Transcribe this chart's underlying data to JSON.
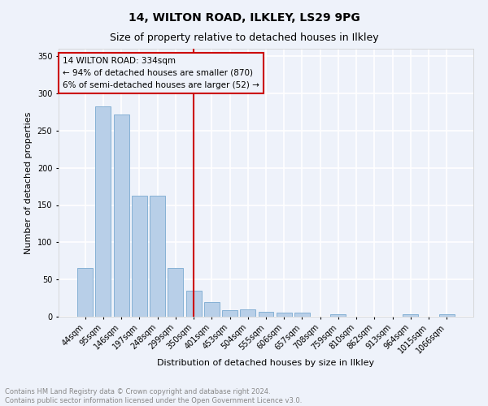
{
  "title": "14, WILTON ROAD, ILKLEY, LS29 9PG",
  "subtitle": "Size of property relative to detached houses in Ilkley",
  "xlabel": "Distribution of detached houses by size in Ilkley",
  "ylabel": "Number of detached properties",
  "categories": [
    "44sqm",
    "95sqm",
    "146sqm",
    "197sqm",
    "248sqm",
    "299sqm",
    "350sqm",
    "401sqm",
    "453sqm",
    "504sqm",
    "555sqm",
    "606sqm",
    "657sqm",
    "708sqm",
    "759sqm",
    "810sqm",
    "862sqm",
    "913sqm",
    "964sqm",
    "1015sqm",
    "1066sqm"
  ],
  "values": [
    65,
    283,
    272,
    163,
    163,
    65,
    35,
    20,
    9,
    10,
    7,
    5,
    5,
    0,
    3,
    0,
    0,
    0,
    3,
    0,
    3
  ],
  "bar_color": "#b8cfe8",
  "bar_edge_color": "#7aaad0",
  "highlight_index": 6,
  "highlight_color": "#cc0000",
  "annotation_title": "14 WILTON ROAD: 334sqm",
  "annotation_line1": "← 94% of detached houses are smaller (870)",
  "annotation_line2": "6% of semi-detached houses are larger (52) →",
  "vline_x": 6,
  "ylim": [
    0,
    360
  ],
  "yticks": [
    0,
    50,
    100,
    150,
    200,
    250,
    300,
    350
  ],
  "footer1": "Contains HM Land Registry data © Crown copyright and database right 2024.",
  "footer2": "Contains public sector information licensed under the Open Government Licence v3.0.",
  "bg_color": "#eef2fa",
  "grid_color": "#ffffff",
  "title_fontsize": 10,
  "subtitle_fontsize": 9,
  "axis_fontsize": 8,
  "tick_fontsize": 7
}
